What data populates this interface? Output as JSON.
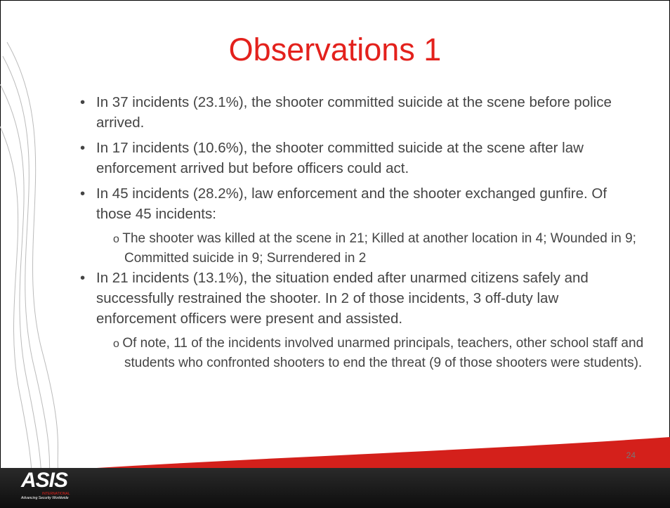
{
  "slide": {
    "title": "Observations 1",
    "bullets": [
      {
        "text": "In 37 incidents (23.1%), the shooter committed suicide at the scene before police arrived."
      },
      {
        "text": "In 17 incidents (10.6%), the shooter committed suicide at the scene after law enforcement arrived but before officers could act."
      },
      {
        "text": "In 45 incidents (28.2%), law enforcement and the shooter exchanged gunfire.  Of those 45 incidents:",
        "sub": [
          "The shooter was killed at the scene in 21; Killed at another location in 4; Wounded in 9; Committed suicide in 9; Surrendered in 2"
        ]
      },
      {
        "text": "In 21 incidents (13.1%), the situation ended after unarmed citizens safely and successfully restrained the shooter.  In 2 of those incidents, 3 off-duty law enforcement officers were present and assisted.",
        "sub": [
          "Of note, 11 of the incidents involved unarmed principals, teachers, other school staff and students who confronted shooters to end the threat (9 of those shooters were students)."
        ]
      }
    ],
    "logo": {
      "name": "ASIS",
      "org": "INTERNATIONAL",
      "tagline": "Advancing Security Worldwide"
    },
    "page_number": "24"
  }
}
